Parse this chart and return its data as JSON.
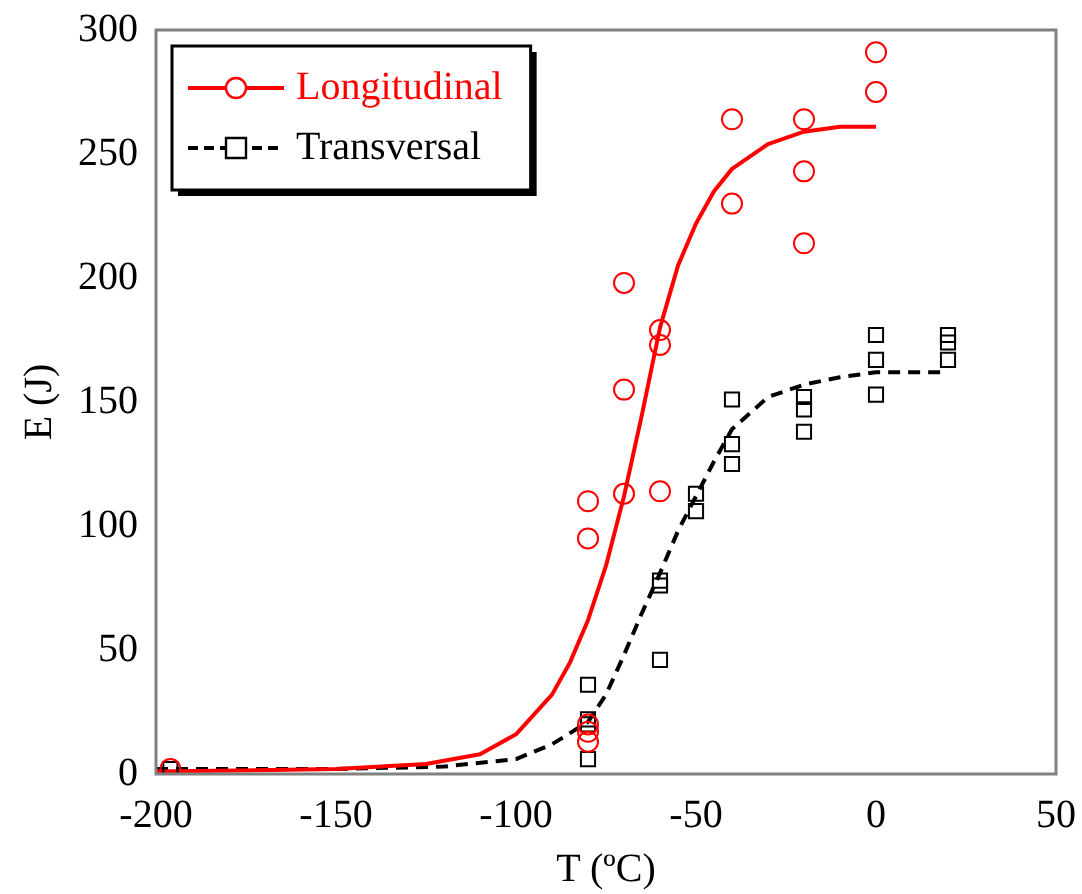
{
  "chart_data": {
    "type": "scatter",
    "xlabel": "T (ºC)",
    "ylabel": "E (J)",
    "xlim": [
      -200,
      50
    ],
    "xticks": [
      -200,
      -150,
      -100,
      -50,
      0,
      50
    ],
    "ylim": [
      0,
      300
    ],
    "yticks": [
      0,
      50,
      100,
      150,
      200,
      250,
      300
    ],
    "grid": false,
    "legend": "top left",
    "series": [
      {
        "name": "Longitudinal",
        "color": "#ff0000",
        "marker": "circle",
        "x": [
          -196,
          -80,
          -80,
          -80,
          -80,
          -80,
          -70,
          -70,
          -70,
          -60,
          -60,
          -60,
          -40,
          -40,
          -20,
          -20,
          -20,
          0,
          0
        ],
        "values": [
          2,
          110,
          95,
          20,
          17,
          13,
          198,
          155,
          113,
          179,
          173,
          114,
          264,
          230,
          264,
          243,
          214,
          291,
          275
        ]
      },
      {
        "name": "Transversal",
        "color": "#000000",
        "marker": "square",
        "x": [
          -196,
          -80,
          -80,
          -80,
          -80,
          -60,
          -60,
          -60,
          -50,
          -50,
          -40,
          -40,
          -40,
          -20,
          -20,
          -20,
          0,
          0,
          0,
          20,
          20,
          20
        ],
        "values": [
          2,
          36,
          22,
          20,
          6,
          78,
          76,
          46,
          113,
          106,
          151,
          133,
          125,
          152,
          147,
          138,
          177,
          167,
          153,
          177,
          174,
          167
        ]
      },
      {
        "type": "line",
        "color": "#ff0000",
        "marker": "none",
        "line_style": "solid",
        "x": [
          -200,
          -150,
          -125,
          -110,
          -100,
          -90,
          -85,
          -80,
          -75,
          -70,
          -65,
          -60,
          -55,
          -50,
          -45,
          -40,
          -30,
          -20,
          -10,
          0
        ],
        "values": [
          1,
          2,
          4,
          8,
          16,
          32,
          45,
          62,
          84,
          112,
          145,
          180,
          205,
          222,
          235,
          244,
          254,
          259,
          261,
          261
        ]
      },
      {
        "type": "line",
        "color": "#000000",
        "marker": "none",
        "line_style": "dashed",
        "x": [
          -200,
          -150,
          -120,
          -100,
          -90,
          -80,
          -75,
          -70,
          -65,
          -60,
          -55,
          -50,
          -45,
          -40,
          -30,
          -20,
          -10,
          0,
          20
        ],
        "values": [
          2,
          2,
          3,
          6,
          12,
          21,
          32,
          48,
          65,
          81,
          98,
          112,
          126,
          139,
          152,
          157,
          160,
          162,
          162
        ]
      }
    ]
  }
}
